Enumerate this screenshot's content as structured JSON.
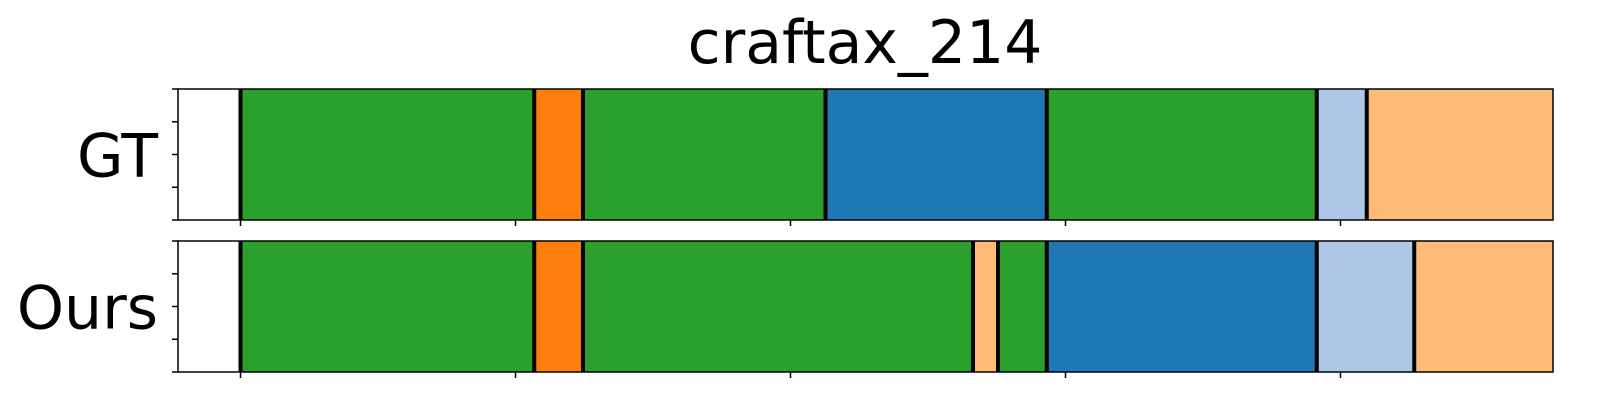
{
  "chart_data": {
    "type": "segment_timeline",
    "title": "craftax_214",
    "xlim": [
      0,
      110
    ],
    "x_ticks": [
      5,
      27,
      49,
      71,
      93,
      115
    ],
    "rows": [
      {
        "label": "GT",
        "segments": [
          {
            "start": 5.0,
            "end": 28.5,
            "color": "#2ca02c"
          },
          {
            "start": 28.5,
            "end": 32.4,
            "color": "#ff7f0e"
          },
          {
            "start": 32.4,
            "end": 51.8,
            "color": "#2ca02c"
          },
          {
            "start": 51.8,
            "end": 69.5,
            "color": "#1f77b4"
          },
          {
            "start": 69.5,
            "end": 91.1,
            "color": "#2ca02c"
          },
          {
            "start": 91.1,
            "end": 95.1,
            "color": "#aec7e8"
          },
          {
            "start": 95.1,
            "end": 115.0,
            "color": "#ffbb78"
          }
        ]
      },
      {
        "label": "Ours",
        "segments": [
          {
            "start": 5.0,
            "end": 28.5,
            "color": "#2ca02c"
          },
          {
            "start": 28.5,
            "end": 32.4,
            "color": "#ff7f0e"
          },
          {
            "start": 32.4,
            "end": 63.6,
            "color": "#2ca02c"
          },
          {
            "start": 63.6,
            "end": 65.6,
            "color": "#ffbb78"
          },
          {
            "start": 65.6,
            "end": 69.5,
            "color": "#2ca02c"
          },
          {
            "start": 69.5,
            "end": 91.1,
            "color": "#1f77b4"
          },
          {
            "start": 91.1,
            "end": 98.9,
            "color": "#aec7e8"
          },
          {
            "start": 98.9,
            "end": 115.0,
            "color": "#ffbb78"
          }
        ]
      }
    ]
  }
}
